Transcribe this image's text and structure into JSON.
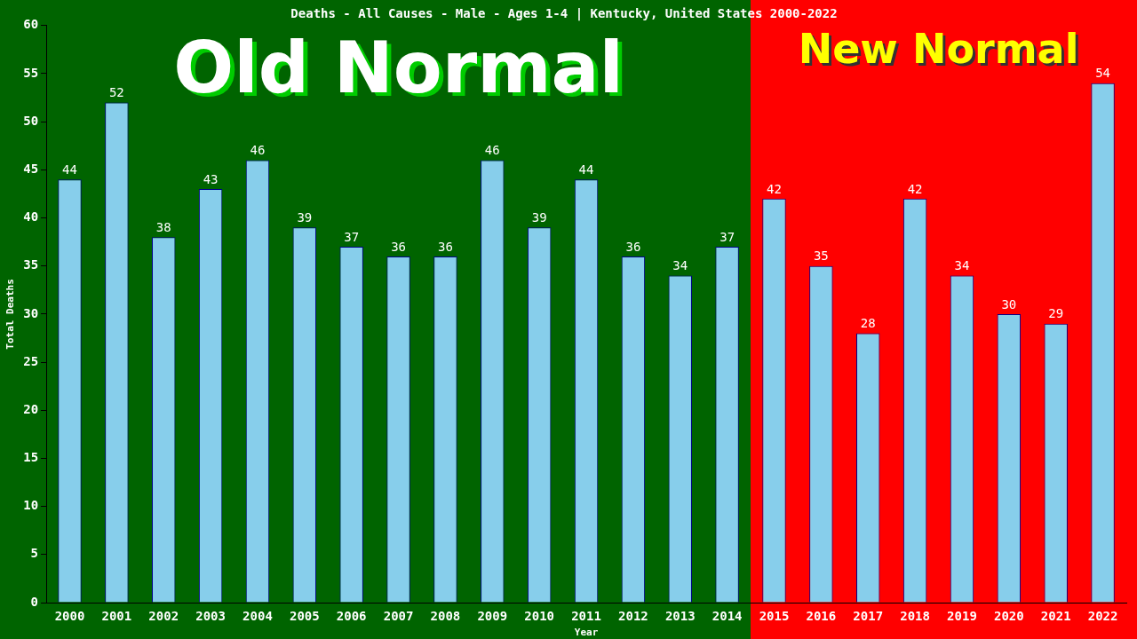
{
  "chart_data": {
    "type": "bar",
    "title": "Deaths - All Causes - Male - Ages 1-4 | Kentucky, United States 2000-2022",
    "xlabel": "Year",
    "ylabel": "Total Deaths",
    "categories": [
      "2000",
      "2001",
      "2002",
      "2003",
      "2004",
      "2005",
      "2006",
      "2007",
      "2008",
      "2009",
      "2010",
      "2011",
      "2012",
      "2013",
      "2014",
      "2015",
      "2016",
      "2017",
      "2018",
      "2019",
      "2020",
      "2021",
      "2022"
    ],
    "values": [
      44,
      52,
      38,
      43,
      46,
      39,
      37,
      36,
      36,
      46,
      39,
      44,
      36,
      34,
      37,
      42,
      35,
      28,
      42,
      34,
      30,
      29,
      54
    ],
    "color": "#87ceeb",
    "data_labels": true,
    "ylim": [
      0,
      60
    ],
    "yticks": [
      0,
      5,
      10,
      15,
      20,
      25,
      30,
      35,
      40,
      45,
      50,
      55,
      60
    ],
    "grid": false,
    "legend": false,
    "bands": [
      {
        "axis": "x",
        "from": "2000",
        "to": "2014",
        "label": "Old Normal",
        "color": "#006400"
      },
      {
        "axis": "x",
        "from": "2015",
        "to": "2022",
        "label": "New Normal",
        "color": "#ff0000"
      }
    ]
  }
}
